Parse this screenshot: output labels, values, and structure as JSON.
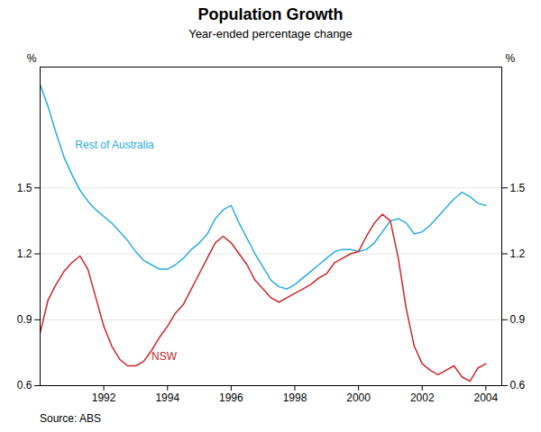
{
  "chart_data": {
    "type": "line",
    "title": "Population Growth",
    "subtitle": "Year-ended percentage change",
    "source": "Source: ABS",
    "ylabel": "%",
    "y2label": "%",
    "x": [
      1990.0,
      1990.25,
      1990.5,
      1990.75,
      1991.0,
      1991.25,
      1991.5,
      1991.75,
      1992.0,
      1992.25,
      1992.5,
      1992.75,
      1993.0,
      1993.25,
      1993.5,
      1993.75,
      1994.0,
      1994.25,
      1994.5,
      1994.75,
      1995.0,
      1995.25,
      1995.5,
      1995.75,
      1996.0,
      1996.25,
      1996.5,
      1996.75,
      1997.0,
      1997.25,
      1997.5,
      1997.75,
      1998.0,
      1998.25,
      1998.5,
      1998.75,
      1999.0,
      1999.25,
      1999.5,
      1999.75,
      2000.0,
      2000.25,
      2000.5,
      2000.75,
      2001.0,
      2001.25,
      2001.5,
      2001.75,
      2002.0,
      2002.25,
      2002.5,
      2002.75,
      2003.0,
      2003.25,
      2003.5,
      2003.75,
      2004.0
    ],
    "series": [
      {
        "name": "Rest of Australia",
        "color": "#29ABE2",
        "values": [
          1.97,
          1.87,
          1.75,
          1.64,
          1.56,
          1.49,
          1.44,
          1.4,
          1.37,
          1.34,
          1.3,
          1.26,
          1.21,
          1.17,
          1.15,
          1.13,
          1.13,
          1.15,
          1.18,
          1.22,
          1.25,
          1.29,
          1.36,
          1.4,
          1.42,
          1.34,
          1.27,
          1.2,
          1.14,
          1.08,
          1.05,
          1.04,
          1.06,
          1.09,
          1.12,
          1.15,
          1.18,
          1.21,
          1.22,
          1.22,
          1.21,
          1.22,
          1.25,
          1.3,
          1.35,
          1.36,
          1.34,
          1.29,
          1.3,
          1.33,
          1.37,
          1.41,
          1.45,
          1.48,
          1.46,
          1.43,
          1.42
        ]
      },
      {
        "name": "NSW",
        "color": "#CC2529",
        "values": [
          0.84,
          0.99,
          1.06,
          1.12,
          1.16,
          1.19,
          1.13,
          1.0,
          0.87,
          0.78,
          0.72,
          0.69,
          0.69,
          0.71,
          0.76,
          0.82,
          0.87,
          0.93,
          0.97,
          1.04,
          1.11,
          1.18,
          1.25,
          1.28,
          1.25,
          1.2,
          1.15,
          1.08,
          1.04,
          1.0,
          0.98,
          1.0,
          1.02,
          1.04,
          1.06,
          1.09,
          1.11,
          1.16,
          1.18,
          1.2,
          1.21,
          1.28,
          1.34,
          1.38,
          1.35,
          1.18,
          0.95,
          0.78,
          0.7,
          0.67,
          0.65,
          0.67,
          0.69,
          0.64,
          0.62,
          0.68,
          0.7
        ]
      }
    ],
    "xlim": [
      1990.0,
      2004.5
    ],
    "xticks": [
      1992,
      1994,
      1996,
      1998,
      2000,
      2002,
      2004
    ],
    "ylim": [
      0.6,
      2.05
    ],
    "yticks": [
      0.6,
      0.9,
      1.2,
      1.5
    ],
    "grid": true,
    "annotations": [
      {
        "text": "Rest of Australia",
        "x": 1991.1,
        "y": 1.68,
        "color": "#29ABE2"
      },
      {
        "text": "NSW",
        "x": 1993.5,
        "y": 0.715,
        "color": "#CC2529"
      }
    ]
  }
}
